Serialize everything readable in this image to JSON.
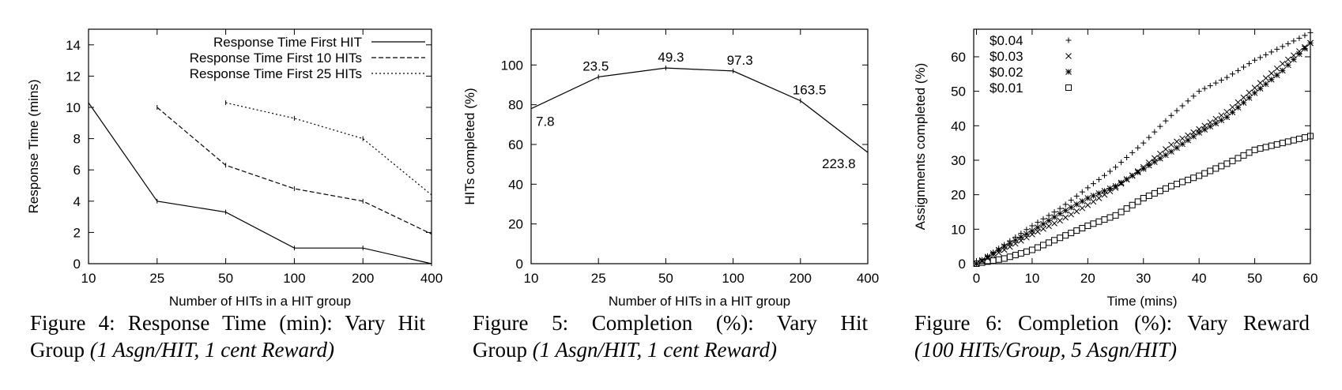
{
  "figures": [
    {
      "caption_label": "Figure 4:",
      "caption_title": "Response Time (min): Vary Hit",
      "caption_line2_plain": "Group ",
      "caption_line2_italic": "(1 Asgn/HIT, 1 cent Reward)"
    },
    {
      "caption_label": "Figure 5:",
      "caption_title": "Completion (%): Vary Hit",
      "caption_line2_plain": "Group ",
      "caption_line2_italic": "(1 Asgn/HIT, 1 cent Reward)"
    },
    {
      "caption_label": "Figure 6:",
      "caption_title": "Completion (%): Vary Reward",
      "caption_line2_plain": "",
      "caption_line2_italic": "(100 HITs/Group, 5 Asgn/HIT)"
    }
  ],
  "chart_data": [
    {
      "type": "line",
      "title": "",
      "xlabel": "Number of HITs in a HIT group",
      "ylabel": "Response Time (mins)",
      "categories": [
        "10",
        "25",
        "50",
        "100",
        "200",
        "400"
      ],
      "yticks": [
        0,
        2,
        4,
        6,
        8,
        10,
        12,
        14
      ],
      "ylim": [
        0,
        15
      ],
      "legend_position": "top-right",
      "grid": false,
      "series": [
        {
          "name": "Response Time First HIT",
          "dash": "solid",
          "values": [
            10.3,
            4.0,
            3.3,
            1.0,
            1.0,
            0.0
          ]
        },
        {
          "name": "Response Time First 10 HITs",
          "dash": "dashed",
          "values": [
            null,
            10.0,
            6.3,
            4.8,
            4.0,
            1.9
          ]
        },
        {
          "name": "Response Time First 25 HITs",
          "dash": "dotted",
          "values": [
            null,
            null,
            10.3,
            9.3,
            8.0,
            4.4
          ]
        }
      ]
    },
    {
      "type": "line",
      "title": "",
      "xlabel": "Number of HITs in a HIT group",
      "ylabel": "HITs completed (%)",
      "categories": [
        "10",
        "25",
        "50",
        "100",
        "200",
        "400"
      ],
      "yticks": [
        0,
        20,
        40,
        60,
        80,
        100
      ],
      "ylim": [
        0,
        118
      ],
      "grid": false,
      "series": [
        {
          "dash": "solid",
          "values": [
            78,
            94,
            98.5,
            97,
            82,
            56
          ]
        }
      ],
      "point_labels": [
        "7.8",
        "23.5",
        "49.3",
        "97.3",
        "163.5",
        "223.8"
      ]
    },
    {
      "type": "scatter",
      "title": "",
      "xlabel": "Time (mins)",
      "ylabel": "Assignments completed (%)",
      "xticks": [
        0,
        10,
        20,
        30,
        40,
        50,
        60
      ],
      "yticks": [
        0,
        10,
        20,
        30,
        40,
        50,
        60
      ],
      "xlim": [
        -0.5,
        60
      ],
      "ylim": [
        0,
        68
      ],
      "legend_position": "top-left",
      "grid": false,
      "series": [
        {
          "name": "$0.04",
          "marker": "plus",
          "x": [
            0,
            5,
            10,
            15,
            20,
            25,
            30,
            35,
            40,
            45,
            50,
            55,
            60
          ],
          "y": [
            0,
            5.5,
            11,
            16,
            22,
            28,
            35,
            43,
            50,
            54,
            59,
            63,
            67
          ]
        },
        {
          "name": "$0.03",
          "marker": "x",
          "x": [
            0,
            5,
            10,
            15,
            20,
            25,
            30,
            35,
            40,
            45,
            50,
            55,
            60
          ],
          "y": [
            0,
            4,
            8.5,
            12.5,
            17,
            22,
            28,
            34.5,
            39,
            44,
            51,
            58,
            64
          ]
        },
        {
          "name": "$0.02",
          "marker": "star",
          "x": [
            0,
            5,
            10,
            15,
            20,
            25,
            30,
            35,
            40,
            45,
            50,
            55,
            60
          ],
          "y": [
            0,
            5,
            9.5,
            14.5,
            19,
            22.5,
            27.5,
            32.5,
            38,
            42.5,
            49.5,
            56,
            64
          ]
        },
        {
          "name": "$0.01",
          "marker": "square",
          "x": [
            0,
            5,
            10,
            15,
            20,
            25,
            30,
            35,
            40,
            45,
            50,
            55,
            60
          ],
          "y": [
            0,
            1.5,
            4,
            7.5,
            11,
            14,
            19,
            22.5,
            25.5,
            29,
            33,
            35,
            37
          ]
        }
      ]
    }
  ]
}
